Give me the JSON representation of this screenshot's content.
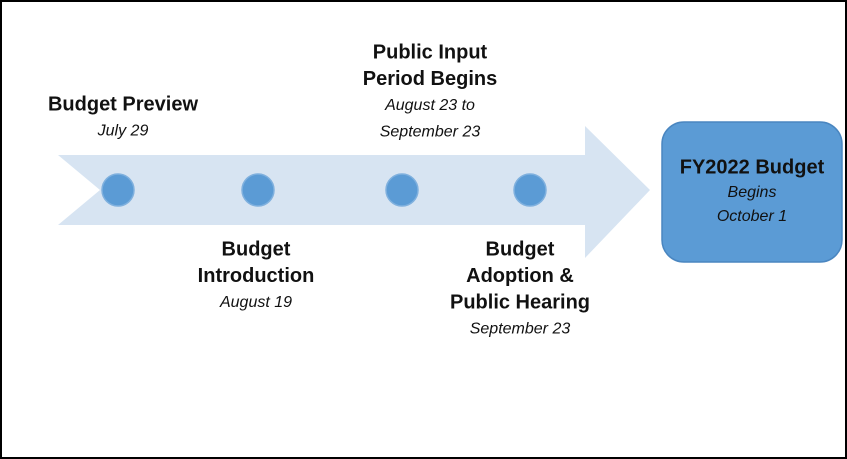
{
  "milestones": [
    {
      "title_lines": [
        "Budget Preview"
      ],
      "date_lines": [
        "July 29"
      ]
    },
    {
      "title_lines": [
        "Budget",
        "Introduction"
      ],
      "date_lines": [
        "August 19"
      ]
    },
    {
      "title_lines": [
        "Public Input",
        "Period Begins"
      ],
      "date_lines": [
        "August 23 to",
        "September 23"
      ]
    },
    {
      "title_lines": [
        "Budget",
        "Adoption &",
        "Public Hearing"
      ],
      "date_lines": [
        "September 23"
      ]
    }
  ],
  "end_box": {
    "title": "FY2022 Budget",
    "detail_lines": [
      "Begins",
      "October 1"
    ]
  }
}
